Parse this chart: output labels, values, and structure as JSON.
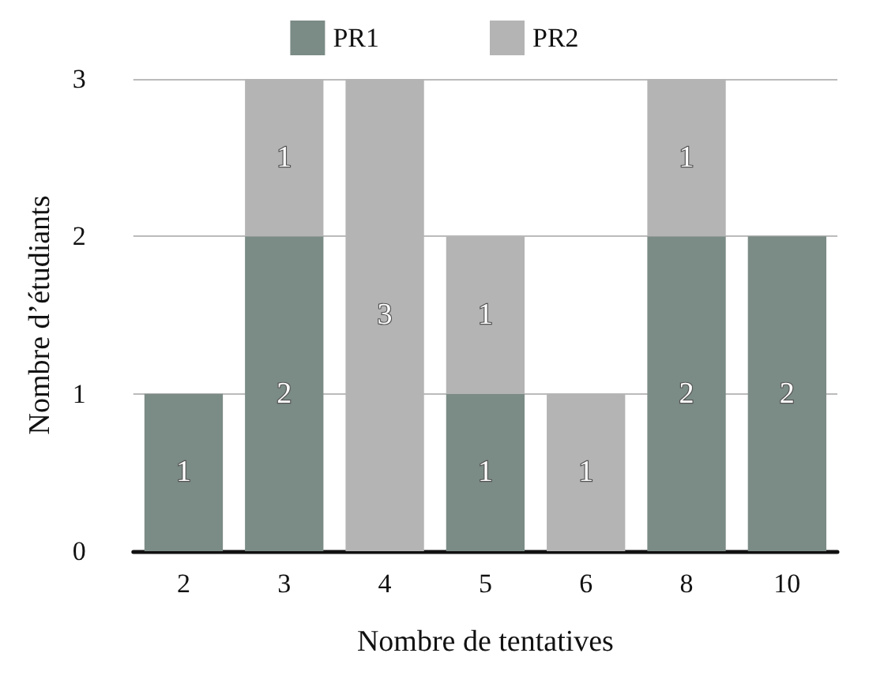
{
  "chart_data": {
    "type": "bar",
    "stacked": true,
    "xlabel": "Nombre de tentatives",
    "ylabel": "Nombre d’étudiants",
    "categories": [
      "2",
      "3",
      "4",
      "5",
      "6",
      "8",
      "10"
    ],
    "series": [
      {
        "name": "PR1",
        "color": "#7b8b86",
        "values": [
          1,
          2,
          null,
          1,
          null,
          2,
          2
        ]
      },
      {
        "name": "PR2",
        "color": "#b4b4b4",
        "values": [
          null,
          1,
          3,
          1,
          1,
          1,
          null
        ]
      }
    ],
    "ylim": [
      0,
      3
    ],
    "yticks": [
      0,
      1,
      2,
      3
    ],
    "grid": "y",
    "legend": "top",
    "data_labels": true
  }
}
